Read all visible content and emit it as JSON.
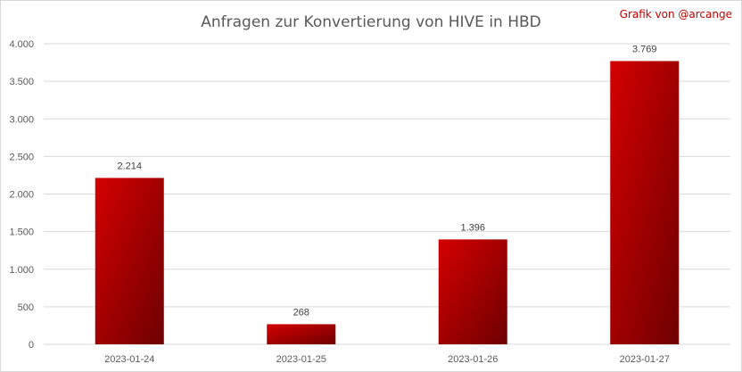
{
  "chart_data": {
    "type": "bar",
    "title": "Anfragen zur Konvertierung von HIVE in HBD",
    "credit": "Grafik von @arcange",
    "categories": [
      "2023-01-24",
      "2023-01-25",
      "2023-01-26",
      "2023-01-27"
    ],
    "values": [
      2214,
      268,
      1396,
      3769
    ],
    "value_labels": [
      "2.214",
      "268",
      "1.396",
      "3.769"
    ],
    "y_ticks": [
      0,
      500,
      1000,
      1500,
      2000,
      2500,
      3000,
      3500,
      4000
    ],
    "y_tick_labels": [
      "0",
      "500",
      "1.000",
      "1.500",
      "2.000",
      "2.500",
      "3.000",
      "3.500",
      "4.000"
    ],
    "ylim": [
      0,
      4000
    ],
    "grid": true,
    "xlabel": "",
    "ylabel": "",
    "colors": {
      "bar_light": "#d40000",
      "bar_dark": "#6e0000",
      "grid": "#d9d9d9",
      "credit": "#c00000"
    }
  }
}
